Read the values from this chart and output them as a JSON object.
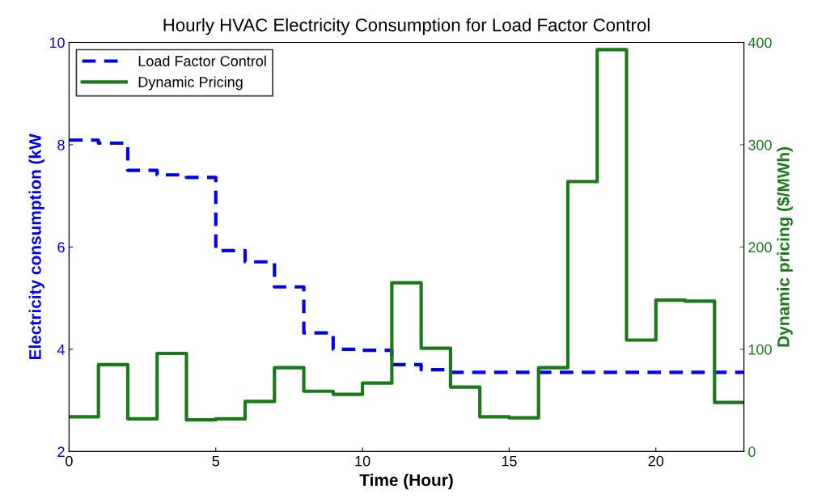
{
  "chart_data": {
    "type": "step",
    "title": "Hourly HVAC Electricity Consumption for Load Factor Control",
    "xlabel": "Time (Hour)",
    "ylabel": "Electricity consumption (kW",
    "y2label": "Dynamic pricing ($/MWh)",
    "x": [
      0,
      1,
      2,
      3,
      4,
      5,
      6,
      7,
      8,
      9,
      10,
      11,
      12,
      13,
      14,
      15,
      16,
      17,
      18,
      19,
      20,
      21,
      22,
      23
    ],
    "series": [
      {
        "name": "Load Factor Control",
        "color": "#0000ee",
        "line_style": "dashed",
        "values": [
          8.09,
          8.03,
          7.5,
          7.41,
          7.36,
          5.93,
          5.71,
          5.22,
          4.32,
          4.0,
          3.98,
          3.7,
          3.6,
          3.55,
          3.55,
          3.55,
          3.55,
          3.55,
          3.55,
          3.55,
          3.55,
          3.55,
          3.55,
          3.55
        ]
      },
      {
        "name": "Dynamic Pricing",
        "color": "#1a7a1a",
        "line_style": "solid",
        "axis": "y2",
        "values": [
          34,
          85,
          32,
          96,
          31,
          32,
          49,
          82,
          59,
          56,
          67,
          165,
          101,
          63,
          34,
          33,
          82,
          264,
          393,
          109,
          148,
          147,
          48,
          48
        ]
      }
    ],
    "xlim": [
      0,
      23
    ],
    "xticks": [
      0,
      5,
      10,
      15,
      20
    ],
    "ylim": [
      2,
      10
    ],
    "yticks": [
      2,
      4,
      6,
      8,
      10
    ],
    "y2lim": [
      0,
      400
    ],
    "y2ticks": [
      0,
      100,
      200,
      300,
      400
    ],
    "grid": false,
    "legend": "top left"
  }
}
